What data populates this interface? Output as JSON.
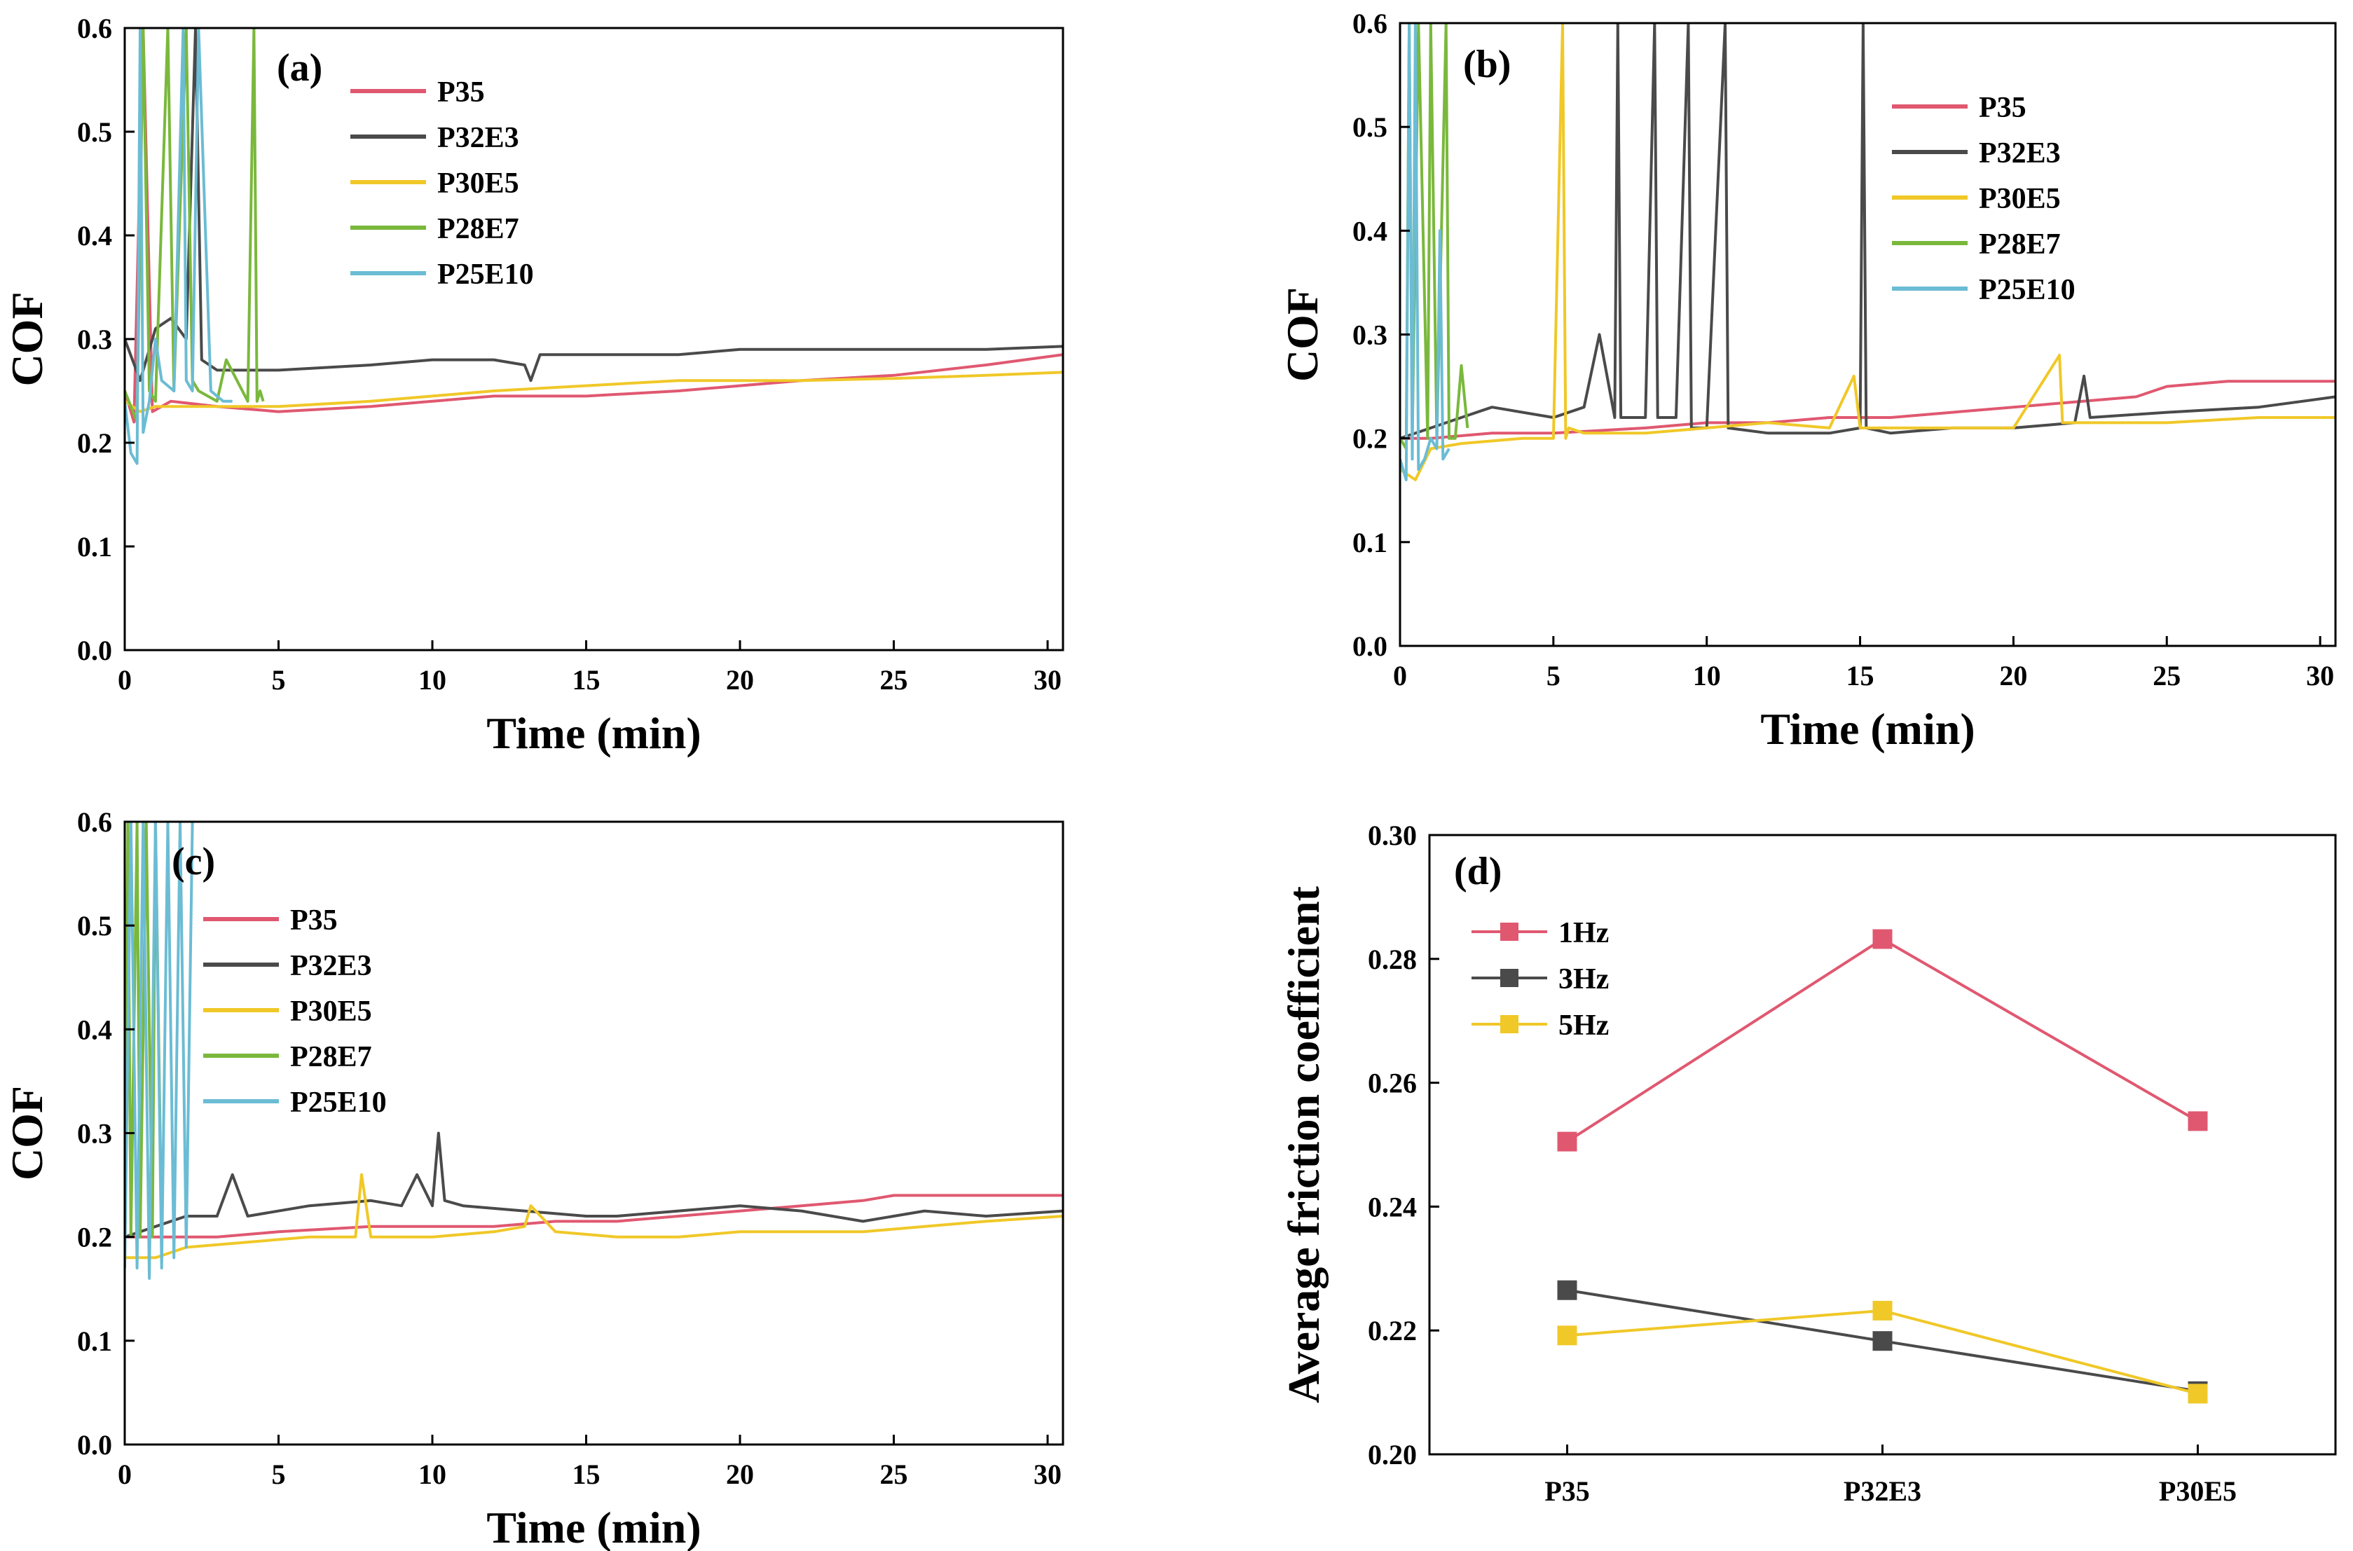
{
  "chart_data": [
    {
      "type": "line",
      "panel_label": "(a)",
      "xlabel": "Time (min)",
      "ylabel": "COF",
      "xlim": [
        0,
        30.5
      ],
      "ylim": [
        0,
        0.6
      ],
      "xticks": [
        "0",
        "5",
        "10",
        "15",
        "20",
        "25",
        "30"
      ],
      "yticks": [
        "0.0",
        "0.1",
        "0.2",
        "0.3",
        "0.4",
        "0.5",
        "0.6"
      ],
      "legend_position": "top-left",
      "series": [
        {
          "name": "P35",
          "color": "#e05870",
          "x": [
            0,
            0.3,
            0.6,
            0.9,
            1.5,
            3,
            5,
            8,
            10,
            12,
            15,
            18,
            20,
            22,
            25,
            28,
            30.5
          ],
          "y": [
            0.25,
            0.22,
            0.6,
            0.23,
            0.24,
            0.235,
            0.23,
            0.235,
            0.24,
            0.245,
            0.245,
            0.25,
            0.255,
            0.26,
            0.265,
            0.275,
            0.285
          ]
        },
        {
          "name": "P32E3",
          "color": "#4a4a4a",
          "x": [
            0,
            0.5,
            1,
            1.5,
            2,
            2.3,
            2.5,
            3,
            5,
            8,
            10,
            12,
            13,
            13.2,
            13.5,
            15,
            18,
            20,
            22,
            25,
            28,
            30.5
          ],
          "y": [
            0.3,
            0.26,
            0.31,
            0.32,
            0.3,
            0.6,
            0.28,
            0.27,
            0.27,
            0.275,
            0.28,
            0.28,
            0.275,
            0.26,
            0.285,
            0.285,
            0.285,
            0.29,
            0.29,
            0.29,
            0.29,
            0.293
          ]
        },
        {
          "name": "P30E5",
          "color": "#f0c828",
          "x": [
            0,
            0.5,
            1,
            2,
            3,
            5,
            8,
            10,
            12,
            15,
            18,
            20,
            22,
            25,
            28,
            30.5
          ],
          "y": [
            0.24,
            0.23,
            0.235,
            0.235,
            0.235,
            0.235,
            0.24,
            0.245,
            0.25,
            0.255,
            0.26,
            0.26,
            0.26,
            0.262,
            0.265,
            0.268
          ]
        },
        {
          "name": "P28E7",
          "color": "#7ab83c",
          "x": [
            0,
            0.4,
            0.6,
            0.8,
            1,
            1.4,
            1.6,
            2,
            2.2,
            2.4,
            3,
            3.3,
            4,
            4.2,
            4.3,
            4.4,
            4.5
          ],
          "y": [
            0.25,
            0.22,
            0.6,
            0.25,
            0.24,
            0.6,
            0.25,
            0.6,
            0.26,
            0.25,
            0.24,
            0.28,
            0.24,
            0.6,
            0.24,
            0.25,
            0.24
          ]
        },
        {
          "name": "P25E10",
          "color": "#6bbcd4",
          "x": [
            0,
            0.2,
            0.4,
            0.5,
            0.6,
            0.8,
            1,
            1.2,
            1.6,
            1.9,
            2,
            2.2,
            2.4,
            2.8,
            3.2,
            3.5
          ],
          "y": [
            0.24,
            0.19,
            0.18,
            0.6,
            0.21,
            0.24,
            0.3,
            0.26,
            0.25,
            0.6,
            0.26,
            0.25,
            0.6,
            0.25,
            0.24,
            0.24
          ]
        }
      ]
    },
    {
      "type": "line",
      "panel_label": "(b)",
      "xlabel": "Time (min)",
      "ylabel": "COF",
      "xlim": [
        0,
        30.5
      ],
      "ylim": [
        0,
        0.6
      ],
      "xticks": [
        "0",
        "5",
        "10",
        "15",
        "20",
        "25",
        "30"
      ],
      "yticks": [
        "0.0",
        "0.1",
        "0.2",
        "0.3",
        "0.4",
        "0.5",
        "0.6"
      ],
      "legend_position": "top-right",
      "series": [
        {
          "name": "P35",
          "color": "#e05870",
          "x": [
            0,
            1,
            3,
            5,
            8,
            10,
            12,
            14,
            16,
            18,
            20,
            22,
            24,
            25,
            27,
            30.5
          ],
          "y": [
            0.2,
            0.2,
            0.205,
            0.205,
            0.21,
            0.215,
            0.215,
            0.22,
            0.22,
            0.225,
            0.23,
            0.235,
            0.24,
            0.25,
            0.255,
            0.255
          ]
        },
        {
          "name": "P32E3",
          "color": "#4a4a4a",
          "x": [
            0,
            1,
            2,
            3,
            5,
            6,
            6.5,
            7,
            7.1,
            7.2,
            8,
            8.3,
            8.4,
            9,
            9.4,
            9.5,
            10,
            10.6,
            10.7,
            12,
            14,
            15,
            15.1,
            15.2,
            16,
            18,
            20,
            22,
            22.3,
            22.5,
            25,
            28,
            30.5
          ],
          "y": [
            0.2,
            0.21,
            0.22,
            0.23,
            0.22,
            0.23,
            0.3,
            0.22,
            0.6,
            0.22,
            0.22,
            0.6,
            0.22,
            0.22,
            0.6,
            0.21,
            0.21,
            0.6,
            0.21,
            0.205,
            0.205,
            0.21,
            0.6,
            0.21,
            0.205,
            0.21,
            0.21,
            0.215,
            0.26,
            0.22,
            0.225,
            0.23,
            0.24
          ]
        },
        {
          "name": "P30E5",
          "color": "#f0c828",
          "x": [
            0,
            0.5,
            1,
            2,
            4,
            5,
            5.3,
            5.4,
            5.5,
            6,
            8,
            10,
            12,
            14,
            14.8,
            15,
            18,
            20,
            21.5,
            21.6,
            22,
            25,
            28,
            30.5
          ],
          "y": [
            0.17,
            0.16,
            0.19,
            0.195,
            0.2,
            0.2,
            0.6,
            0.2,
            0.21,
            0.205,
            0.205,
            0.21,
            0.215,
            0.21,
            0.26,
            0.21,
            0.21,
            0.21,
            0.28,
            0.215,
            0.215,
            0.215,
            0.22,
            0.22
          ]
        },
        {
          "name": "P28E7",
          "color": "#7ab83c",
          "x": [
            0,
            0.2,
            0.3,
            0.4,
            0.6,
            0.9,
            1,
            1.2,
            1.5,
            1.6,
            1.8,
            2,
            2.2
          ],
          "y": [
            0.2,
            0.19,
            0.6,
            0.2,
            0.6,
            0.2,
            0.6,
            0.2,
            0.6,
            0.2,
            0.2,
            0.27,
            0.21
          ]
        },
        {
          "name": "P25E10",
          "color": "#6bbcd4",
          "x": [
            0,
            0.2,
            0.3,
            0.4,
            0.5,
            0.6,
            0.8,
            1,
            1.2,
            1.3,
            1.4,
            1.6
          ],
          "y": [
            0.18,
            0.16,
            0.6,
            0.18,
            0.6,
            0.17,
            0.18,
            0.2,
            0.19,
            0.4,
            0.18,
            0.19
          ]
        }
      ]
    },
    {
      "type": "line",
      "panel_label": "(c)",
      "xlabel": "Time (min)",
      "ylabel": "COF",
      "xlim": [
        0,
        30.5
      ],
      "ylim": [
        0,
        0.6
      ],
      "xticks": [
        "0",
        "5",
        "10",
        "15",
        "20",
        "25",
        "30"
      ],
      "yticks": [
        "0.0",
        "0.1",
        "0.2",
        "0.3",
        "0.4",
        "0.5",
        "0.6"
      ],
      "legend_position": "top-left",
      "series": [
        {
          "name": "P35",
          "color": "#e05870",
          "x": [
            0,
            1,
            3,
            5,
            8,
            10,
            12,
            14,
            16,
            18,
            20,
            22,
            24,
            25,
            26,
            28,
            30.5
          ],
          "y": [
            0.2,
            0.2,
            0.2,
            0.205,
            0.21,
            0.21,
            0.21,
            0.215,
            0.215,
            0.22,
            0.225,
            0.23,
            0.235,
            0.24,
            0.24,
            0.24,
            0.24
          ]
        },
        {
          "name": "P32E3",
          "color": "#4a4a4a",
          "x": [
            0,
            1,
            2,
            3,
            3.5,
            4,
            6,
            8,
            9,
            9.5,
            10,
            10.2,
            10.4,
            11,
            13,
            15,
            16,
            18,
            20,
            22,
            24,
            25,
            26,
            28,
            30.5
          ],
          "y": [
            0.2,
            0.21,
            0.22,
            0.22,
            0.26,
            0.22,
            0.23,
            0.235,
            0.23,
            0.26,
            0.23,
            0.3,
            0.235,
            0.23,
            0.225,
            0.22,
            0.22,
            0.225,
            0.23,
            0.225,
            0.215,
            0.22,
            0.225,
            0.22,
            0.225
          ]
        },
        {
          "name": "P30E5",
          "color": "#f0c828",
          "x": [
            0,
            1,
            2,
            4,
            6,
            7.5,
            7.7,
            8,
            10,
            12,
            13,
            13.2,
            14,
            16,
            18,
            20,
            22,
            24,
            26,
            28,
            30.5
          ],
          "y": [
            0.18,
            0.18,
            0.19,
            0.195,
            0.2,
            0.2,
            0.26,
            0.2,
            0.2,
            0.205,
            0.21,
            0.23,
            0.205,
            0.2,
            0.2,
            0.205,
            0.205,
            0.205,
            0.21,
            0.215,
            0.22
          ]
        },
        {
          "name": "P28E7",
          "color": "#7ab83c",
          "x": [
            0,
            0.1,
            0.2,
            0.4,
            0.5,
            0.7,
            0.9,
            1,
            1.2
          ],
          "y": [
            0.2,
            0.6,
            0.2,
            0.6,
            0.2,
            0.6,
            0.2,
            0.6,
            0.2
          ]
        },
        {
          "name": "P25E10",
          "color": "#6bbcd4",
          "x": [
            0,
            0.2,
            0.4,
            0.6,
            0.8,
            1,
            1.2,
            1.4,
            1.6,
            1.8,
            2,
            2.2
          ],
          "y": [
            0.17,
            0.6,
            0.17,
            0.6,
            0.16,
            0.6,
            0.17,
            0.6,
            0.18,
            0.6,
            0.19,
            0.6
          ]
        }
      ]
    },
    {
      "type": "line",
      "panel_label": "(d)",
      "xlabel": "",
      "ylabel": "Average friction coefficient",
      "categories": [
        "P35",
        "P32E3",
        "P30E5"
      ],
      "ylim": [
        0.2,
        0.3
      ],
      "yticks": [
        "0.20",
        "0.22",
        "0.24",
        "0.26",
        "0.28",
        "0.30"
      ],
      "legend_position": "top-left",
      "series": [
        {
          "name": "1Hz",
          "color": "#e05870",
          "values": [
            0.2505,
            0.2832,
            0.2538
          ]
        },
        {
          "name": "3Hz",
          "color": "#4a4a4a",
          "values": [
            0.2265,
            0.2183,
            0.2102
          ]
        },
        {
          "name": "5Hz",
          "color": "#f0c828",
          "values": [
            0.2192,
            0.2232,
            0.2098
          ]
        }
      ]
    }
  ]
}
